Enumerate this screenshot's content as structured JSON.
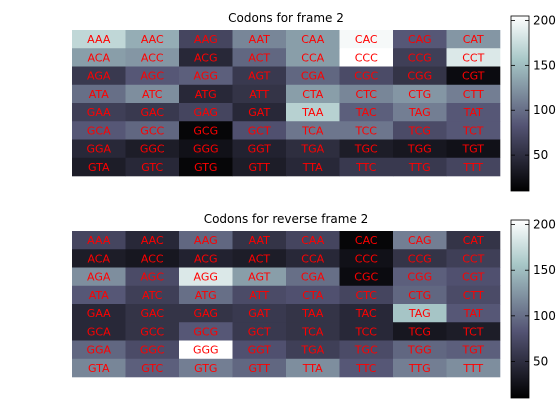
{
  "chart_data": [
    {
      "type": "heatmap",
      "title": "Codons for frame 2",
      "colormap": "bone",
      "label_color": "#ff0000",
      "clim": [
        10,
        205
      ],
      "colorbar_ticks": [
        50,
        100,
        150,
        200
      ],
      "grid": false,
      "rows": [
        {
          "codons": [
            "AAA",
            "AAC",
            "AAG",
            "AAT",
            "CAA",
            "CAC",
            "CAG",
            "CAT"
          ],
          "values": [
            170,
            140,
            70,
            115,
            130,
            200,
            85,
            125
          ]
        },
        {
          "codons": [
            "ACA",
            "ACC",
            "ACG",
            "ACT",
            "CCA",
            "CCC",
            "CCG",
            "CCT"
          ],
          "values": [
            130,
            125,
            45,
            95,
            130,
            205,
            65,
            185
          ]
        },
        {
          "codons": [
            "AGA",
            "AGC",
            "AGG",
            "AGT",
            "CGA",
            "CGC",
            "CGG",
            "CGT"
          ],
          "values": [
            60,
            85,
            90,
            60,
            95,
            75,
            55,
            20
          ]
        },
        {
          "codons": [
            "ATA",
            "ATC",
            "ATG",
            "ATT",
            "CTA",
            "CTC",
            "CTG",
            "CTT"
          ],
          "values": [
            100,
            120,
            45,
            55,
            130,
            115,
            125,
            110
          ]
        },
        {
          "codons": [
            "GAA",
            "GAC",
            "GAG",
            "GAT",
            "TAA",
            "TAC",
            "TAG",
            "TAT"
          ],
          "values": [
            65,
            60,
            70,
            45,
            165,
            90,
            110,
            85
          ]
        },
        {
          "codons": [
            "GCA",
            "GCC",
            "GCG",
            "GCT",
            "TCA",
            "TCC",
            "TCG",
            "TCT"
          ],
          "values": [
            85,
            95,
            15,
            80,
            105,
            105,
            75,
            85
          ]
        },
        {
          "codons": [
            "GGA",
            "GGC",
            "GGG",
            "GGT",
            "TGA",
            "TGC",
            "TGG",
            "TGT"
          ],
          "values": [
            45,
            35,
            25,
            40,
            50,
            35,
            30,
            25
          ]
        },
        {
          "codons": [
            "GTA",
            "GTC",
            "GTG",
            "GTT",
            "TTA",
            "TTC",
            "TTG",
            "TTT"
          ],
          "values": [
            35,
            45,
            15,
            35,
            45,
            60,
            60,
            70
          ]
        }
      ]
    },
    {
      "type": "heatmap",
      "title": "Codons for reverse frame 2",
      "colormap": "bone",
      "label_color": "#ff0000",
      "clim": [
        10,
        205
      ],
      "colorbar_ticks": [
        50,
        100,
        150,
        200
      ],
      "grid": false,
      "rows": [
        {
          "codons": [
            "AAA",
            "AAC",
            "AAG",
            "AAT",
            "CAA",
            "CAC",
            "CAG",
            "CAT"
          ],
          "values": [
            70,
            45,
            95,
            55,
            70,
            15,
            110,
            55
          ]
        },
        {
          "codons": [
            "ACA",
            "ACC",
            "ACG",
            "ACT",
            "CCA",
            "CCC",
            "CCG",
            "CCT"
          ],
          "values": [
            35,
            30,
            40,
            35,
            45,
            25,
            55,
            65
          ]
        },
        {
          "codons": [
            "AGA",
            "AGC",
            "AGG",
            "AGT",
            "CGA",
            "CGC",
            "CGG",
            "CGT"
          ],
          "values": [
            120,
            75,
            185,
            130,
            100,
            20,
            90,
            80
          ]
        },
        {
          "codons": [
            "ATA",
            "ATC",
            "ATG",
            "ATT",
            "CTA",
            "CTC",
            "CTG",
            "CTT"
          ],
          "values": [
            85,
            65,
            100,
            75,
            80,
            70,
            95,
            75
          ]
        },
        {
          "codons": [
            "GAA",
            "GAC",
            "GAG",
            "GAT",
            "TAA",
            "TAC",
            "TAG",
            "TAT"
          ],
          "values": [
            45,
            55,
            55,
            60,
            55,
            45,
            155,
            85
          ]
        },
        {
          "codons": [
            "GCA",
            "GCC",
            "GCG",
            "GCT",
            "TCA",
            "TCC",
            "TCG",
            "TCT"
          ],
          "values": [
            45,
            55,
            85,
            60,
            55,
            45,
            30,
            35
          ]
        },
        {
          "codons": [
            "GGA",
            "GGC",
            "GGG",
            "GGT",
            "TGA",
            "TGC",
            "TGG",
            "TGT"
          ],
          "values": [
            95,
            75,
            205,
            80,
            65,
            75,
            95,
            90
          ]
        },
        {
          "codons": [
            "GTA",
            "GTC",
            "GTG",
            "GTT",
            "TTA",
            "TTC",
            "TTG",
            "TTT"
          ],
          "values": [
            115,
            90,
            110,
            95,
            120,
            85,
            110,
            120
          ]
        }
      ]
    }
  ]
}
